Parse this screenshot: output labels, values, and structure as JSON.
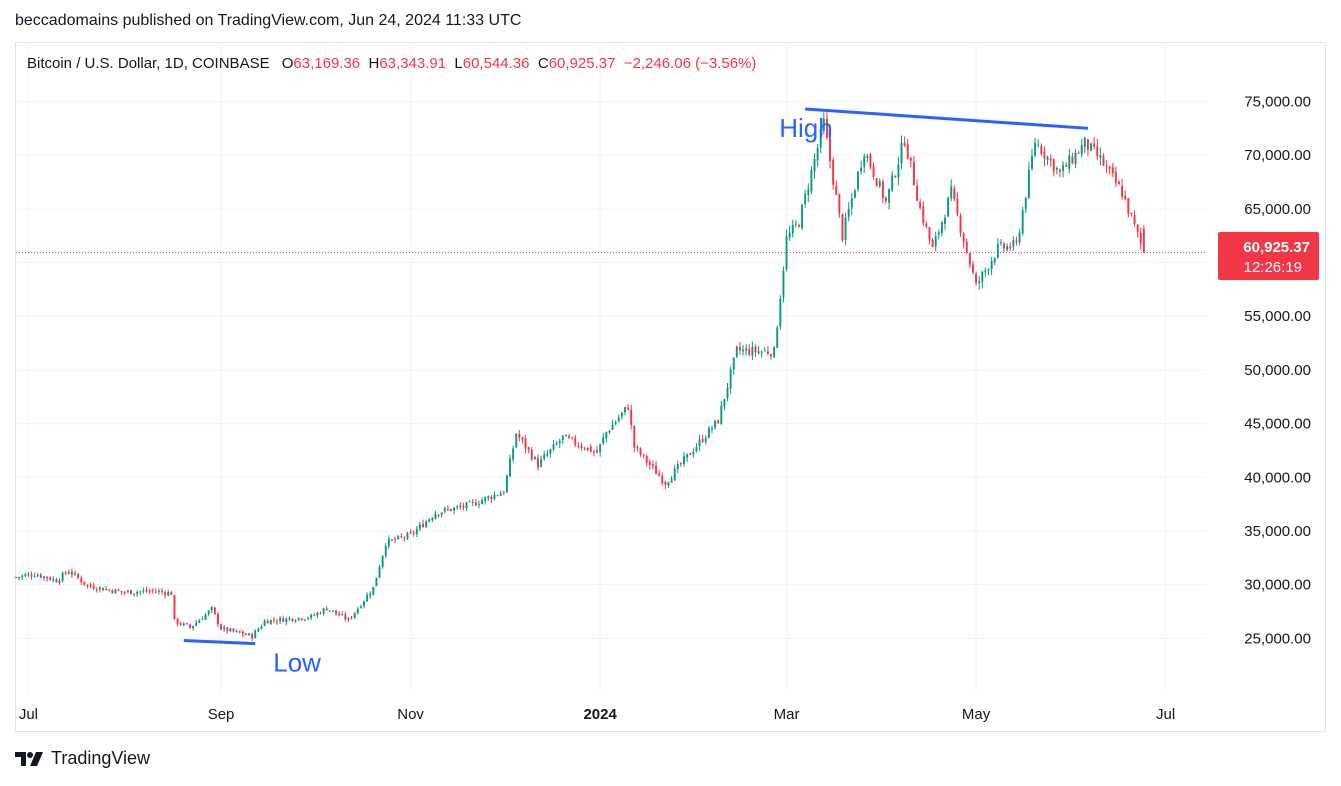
{
  "header": {
    "publisher_line": "beccadomains published on TradingView.com, Jun 24, 2024 11:33 UTC"
  },
  "legend": {
    "symbol": "Bitcoin / U.S. Dollar, 1D, COINBASE",
    "o_label": "O",
    "o_value": "63,169.36",
    "h_label": "H",
    "h_value": "63,343.91",
    "l_label": "L",
    "l_value": "60,544.36",
    "c_label": "C",
    "c_value": "60,925.37",
    "change": "−2,246.06 (−3.56%)"
  },
  "price_tag": {
    "price": "60,925.37",
    "countdown": "12:26:19"
  },
  "footer": {
    "brand": "TradingView",
    "logo_icon": "tradingview-logo-icon"
  },
  "colors": {
    "up": "#089981",
    "down": "#f23645",
    "annotation": "#2962ff"
  },
  "chart_data": {
    "type": "candlestick",
    "y_ticks": [
      "25,000.00",
      "30,000.00",
      "35,000.00",
      "40,000.00",
      "45,000.00",
      "50,000.00",
      "55,000.00",
      "60,000.00",
      "65,000.00",
      "70,000.00",
      "75,000.00"
    ],
    "ylim": [
      20000,
      77000
    ],
    "grid": true,
    "x_ticks": [
      {
        "label": "Jul",
        "date": "2023-07-01",
        "bold": false
      },
      {
        "label": "Sep",
        "date": "2023-09-01",
        "bold": false
      },
      {
        "label": "Nov",
        "date": "2023-11-01",
        "bold": false
      },
      {
        "label": "2024",
        "date": "2024-01-01",
        "bold": true
      },
      {
        "label": "Mar",
        "date": "2024-03-01",
        "bold": false
      },
      {
        "label": "May",
        "date": "2024-05-01",
        "bold": false
      },
      {
        "label": "Jul",
        "date": "2024-07-01",
        "bold": false
      }
    ],
    "x_range": [
      "2023-06-27",
      "2024-07-14"
    ],
    "last_price": 60925.37,
    "closes": [
      {
        "date": "2023-06-27",
        "close": 30700
      },
      {
        "date": "2023-07-03",
        "close": 31000
      },
      {
        "date": "2023-07-10",
        "close": 30400
      },
      {
        "date": "2023-07-14",
        "close": 31300
      },
      {
        "date": "2023-07-20",
        "close": 29900
      },
      {
        "date": "2023-07-31",
        "close": 29300
      },
      {
        "date": "2023-08-10",
        "close": 29400
      },
      {
        "date": "2023-08-16",
        "close": 29200
      },
      {
        "date": "2023-08-17",
        "close": 26600
      },
      {
        "date": "2023-08-22",
        "close": 26000
      },
      {
        "date": "2023-08-29",
        "close": 27700
      },
      {
        "date": "2023-09-01",
        "close": 25900
      },
      {
        "date": "2023-09-11",
        "close": 25200
      },
      {
        "date": "2023-09-15",
        "close": 26600
      },
      {
        "date": "2023-09-30",
        "close": 27000
      },
      {
        "date": "2023-10-05",
        "close": 27800
      },
      {
        "date": "2023-10-12",
        "close": 26700
      },
      {
        "date": "2023-10-20",
        "close": 29700
      },
      {
        "date": "2023-10-24",
        "close": 33900
      },
      {
        "date": "2023-11-01",
        "close": 34600
      },
      {
        "date": "2023-11-09",
        "close": 36700
      },
      {
        "date": "2023-11-20",
        "close": 37400
      },
      {
        "date": "2023-12-01",
        "close": 38700
      },
      {
        "date": "2023-12-05",
        "close": 44100
      },
      {
        "date": "2023-12-12",
        "close": 41200
      },
      {
        "date": "2023-12-20",
        "close": 43700
      },
      {
        "date": "2023-12-31",
        "close": 42300
      },
      {
        "date": "2024-01-03",
        "close": 44200
      },
      {
        "date": "2024-01-10",
        "close": 46600
      },
      {
        "date": "2024-01-12",
        "close": 42800
      },
      {
        "date": "2024-01-22",
        "close": 39500
      },
      {
        "date": "2024-01-31",
        "close": 42600
      },
      {
        "date": "2024-02-08",
        "close": 45300
      },
      {
        "date": "2024-02-14",
        "close": 51800
      },
      {
        "date": "2024-02-26",
        "close": 51700
      },
      {
        "date": "2024-03-01",
        "close": 62200
      },
      {
        "date": "2024-03-05",
        "close": 63800
      },
      {
        "date": "2024-03-13",
        "close": 73000
      },
      {
        "date": "2024-03-19",
        "close": 62500
      },
      {
        "date": "2024-03-26",
        "close": 70500
      },
      {
        "date": "2024-04-02",
        "close": 65600
      },
      {
        "date": "2024-04-08",
        "close": 71500
      },
      {
        "date": "2024-04-13",
        "close": 65000
      },
      {
        "date": "2024-04-17",
        "close": 61200
      },
      {
        "date": "2024-04-23",
        "close": 66500
      },
      {
        "date": "2024-05-01",
        "close": 57800
      },
      {
        "date": "2024-05-08",
        "close": 61300
      },
      {
        "date": "2024-05-14",
        "close": 61600
      },
      {
        "date": "2024-05-20",
        "close": 71300
      },
      {
        "date": "2024-05-28",
        "close": 68300
      },
      {
        "date": "2024-06-05",
        "close": 71100
      },
      {
        "date": "2024-06-10",
        "close": 69600
      },
      {
        "date": "2024-06-17",
        "close": 66500
      },
      {
        "date": "2024-06-24",
        "close": 60925
      }
    ],
    "annotations": [
      {
        "label": "High",
        "line": [
          {
            "date": "2024-03-07",
            "price": 74300
          },
          {
            "date": "2024-06-06",
            "price": 72500
          }
        ]
      },
      {
        "label": "Low",
        "line": [
          {
            "date": "2023-08-20",
            "price": 24800
          },
          {
            "date": "2023-09-12",
            "price": 24500
          }
        ]
      }
    ]
  }
}
